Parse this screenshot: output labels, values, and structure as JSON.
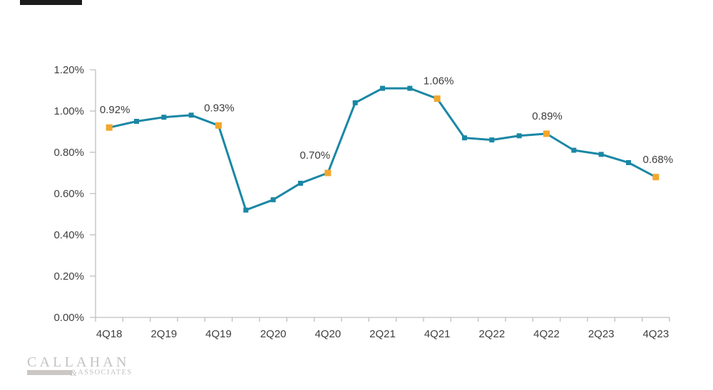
{
  "chart_data": {
    "type": "line",
    "title": "",
    "categories": [
      "4Q18",
      "1Q19",
      "2Q19",
      "3Q19",
      "4Q19",
      "1Q20",
      "2Q20",
      "3Q20",
      "4Q20",
      "1Q21",
      "2Q21",
      "3Q21",
      "4Q21",
      "1Q22",
      "2Q22",
      "3Q22",
      "4Q22",
      "1Q23",
      "2Q23",
      "3Q23",
      "4Q23"
    ],
    "values": [
      0.92,
      0.95,
      0.97,
      0.98,
      0.93,
      0.52,
      0.57,
      0.65,
      0.7,
      1.04,
      1.11,
      1.11,
      1.06,
      0.87,
      0.86,
      0.88,
      0.89,
      0.81,
      0.79,
      0.75,
      0.68
    ],
    "unit": "%",
    "x_tick_labels": [
      "4Q18",
      "2Q19",
      "4Q19",
      "2Q20",
      "4Q20",
      "2Q21",
      "4Q21",
      "2Q22",
      "4Q22",
      "2Q23",
      "4Q23"
    ],
    "y_tick_labels": [
      "0.00%",
      "0.20%",
      "0.40%",
      "0.60%",
      "0.80%",
      "1.00%",
      "1.20%"
    ],
    "ylim": [
      0,
      1.2
    ],
    "y_step": 0.2,
    "grid": "off",
    "legend": "none",
    "highlighted_points": [
      {
        "category": "4Q18",
        "label": "0.92%",
        "dx": 8
      },
      {
        "category": "4Q19",
        "label": "0.93%",
        "dx": 1
      },
      {
        "category": "4Q20",
        "label": "0.70%",
        "dx": -18
      },
      {
        "category": "4Q21",
        "label": "1.06%",
        "dx": 2
      },
      {
        "category": "4Q22",
        "label": "0.89%",
        "dx": 1
      },
      {
        "category": "4Q23",
        "label": "0.68%",
        "dx": 3
      }
    ],
    "colors": {
      "line": "#1A87A5",
      "marker": "#1A87A5",
      "highlight_marker": "#F2A72D",
      "axis": "#BFBFBF",
      "text": "#404040"
    }
  },
  "logo": {
    "name": "CALLAHAN",
    "ampersand": "&",
    "suffix": "ASSOCIATES"
  }
}
